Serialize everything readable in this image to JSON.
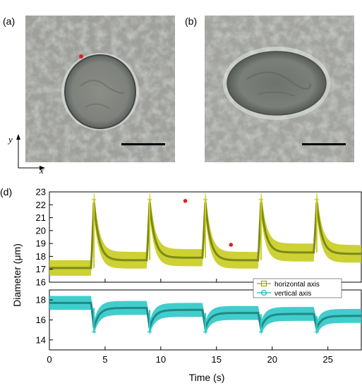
{
  "panels": {
    "a": {
      "label": "(a)"
    },
    "b": {
      "label": "(b)"
    },
    "d": {
      "label": "(d)"
    }
  },
  "axes_indicator": {
    "x": "x",
    "y": "y"
  },
  "colors": {
    "horizontal_band": "#c8cc1e",
    "horizontal_line": "#7c8a16",
    "vertical_band": "#2ec8c8",
    "vertical_line": "#1f8a86",
    "marker_red": "#e02020",
    "scale_bar": "#000000"
  },
  "chart_data": {
    "type": "line",
    "xlabel": "Time (s)",
    "ylabel": "Diameter (μm)",
    "xlim": [
      0,
      28
    ],
    "x_ticks": [
      "0",
      "5",
      "10",
      "15",
      "20",
      "25"
    ],
    "upper_ylim": [
      16,
      23
    ],
    "upper_yticks": [
      "16",
      "17",
      "18",
      "19",
      "20",
      "21",
      "22",
      "23"
    ],
    "lower_ylim": [
      13,
      19
    ],
    "lower_yticks": [
      "14",
      "16",
      "18"
    ],
    "pulse_times": [
      4.0,
      9.0,
      14.0,
      19.0,
      24.0
    ],
    "series": [
      {
        "name": "horizontal axis",
        "panel": "upper",
        "baseline": [
          17.1,
          17.7,
          17.9,
          17.7,
          18.3,
          18.2
        ],
        "peak": 22.2,
        "band_halfwidth": 0.6
      },
      {
        "name": "vertical axis",
        "panel": "lower",
        "baseline": [
          17.7,
          17.2,
          17.0,
          16.7,
          16.6,
          16.4
        ],
        "dip": 15.2,
        "band_halfwidth": 0.7
      }
    ],
    "legend": [
      "horizontal axis",
      "vertical axis"
    ],
    "legend_position": "lower-right of upper panel",
    "red_markers": [
      [
        12.2,
        22.3
      ],
      [
        16.3,
        18.9
      ]
    ]
  }
}
